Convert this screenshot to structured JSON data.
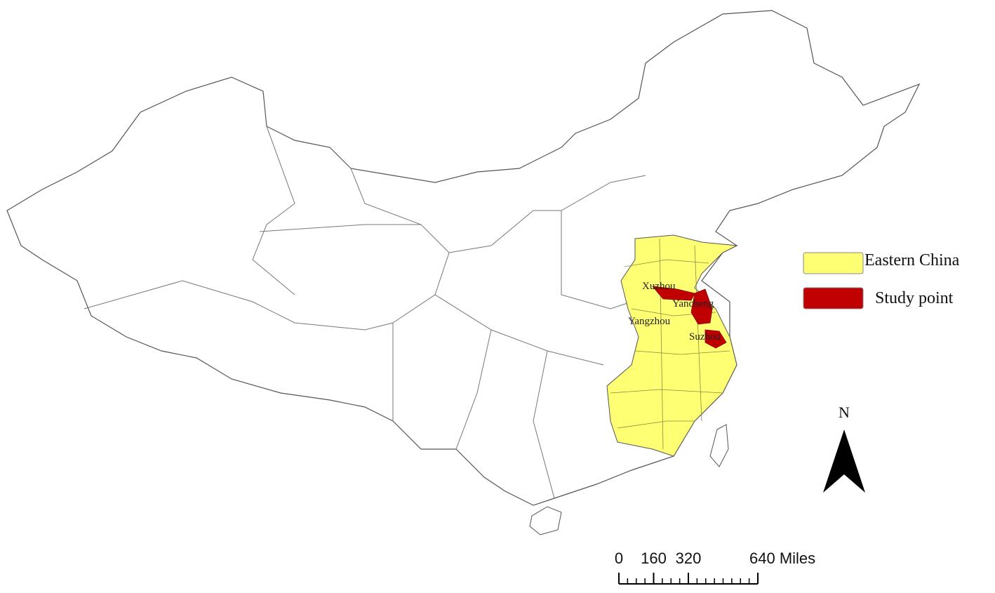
{
  "legend": [
    {
      "label": "Eastern China",
      "color": "#ffff73"
    },
    {
      "label": "Study point",
      "color": "#c00000"
    }
  ],
  "cities": [
    "Xuzhou",
    "Yancheng",
    "Yangzhou",
    "Suzhou"
  ],
  "north_label": "N",
  "scale_bar": {
    "ticks": [
      0,
      160,
      320,
      {
        "value": 640,
        "label": "640 Miles"
      }
    ]
  }
}
